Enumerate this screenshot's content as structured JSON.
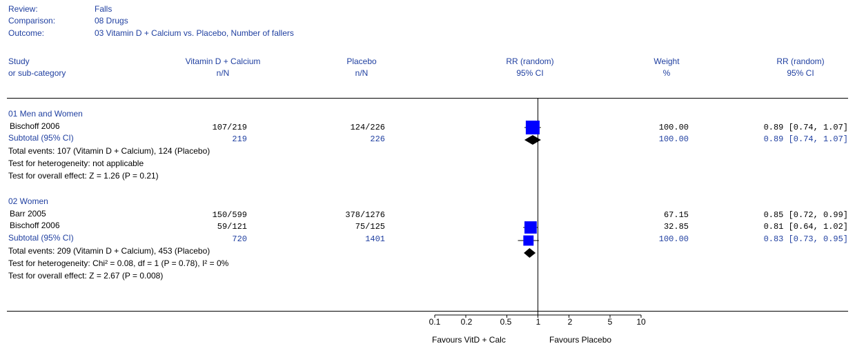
{
  "colors": {
    "text_blue": "#1f3fa0",
    "box_blue": "#0000ff",
    "text_black": "#000000"
  },
  "meta": {
    "review_label": "Review:",
    "review_value": "Falls",
    "comparison_label": "Comparison:",
    "comparison_value": "08 Drugs",
    "outcome_label": "Outcome:",
    "outcome_value": "03 Vitamin D + Calcium vs. Placebo, Number of fallers"
  },
  "headers": {
    "study_1": "Study",
    "study_2": "or sub-category",
    "treat_1": "Vitamin D + Calcium",
    "treat_2": "n/N",
    "ctrl_1": "Placebo",
    "ctrl_2": "n/N",
    "plot_1": "RR (random)",
    "plot_2": "95% CI",
    "weight_1": "Weight",
    "weight_2": "%",
    "rr_1": "RR (random)",
    "rr_2": "95% CI"
  },
  "groups": [
    {
      "title": "01 Men and Women",
      "studies": [
        {
          "name": "Bischoff 2006",
          "treat": "107/219",
          "ctrl": "124/226",
          "weight": "100.00",
          "rr": "0.89 [0.74, 1.07]"
        }
      ],
      "subtotal": {
        "label": "Subtotal (95% CI)",
        "treat": "219",
        "ctrl": "226",
        "weight": "100.00",
        "rr": "0.89 [0.74, 1.07]"
      },
      "notes": [
        "Total events: 107 (Vitamin D + Calcium), 124 (Placebo)",
        "Test for heterogeneity: not applicable",
        "Test for overall effect: Z = 1.26 (P = 0.21)"
      ]
    },
    {
      "title": "02 Women",
      "studies": [
        {
          "name": "Barr 2005",
          "treat": "150/599",
          "ctrl": "378/1276",
          "weight": "67.15",
          "rr": "0.85 [0.72, 0.99]"
        },
        {
          "name": "Bischoff 2006",
          "treat": "59/121",
          "ctrl": "75/125",
          "weight": "32.85",
          "rr": "0.81 [0.64, 1.02]"
        }
      ],
      "subtotal": {
        "label": "Subtotal (95% CI)",
        "treat": "720",
        "ctrl": "1401",
        "weight": "100.00",
        "rr": "0.83 [0.73, 0.95]"
      },
      "notes": [
        "Total events: 209 (Vitamin D + Calcium), 453 (Placebo)",
        "Test for heterogeneity: Chi² = 0.08, df = 1 (P = 0.78), I² = 0%",
        "Test for overall effect: Z = 2.67 (P = 0.008)"
      ]
    }
  ],
  "axis": {
    "ticks": [
      "0.1",
      "0.2",
      "0.5",
      "1",
      "2",
      "5",
      "10"
    ],
    "favours_left": "Favours VitD + Calc",
    "favours_right": "Favours Placebo"
  },
  "chart_data": {
    "type": "forest",
    "scale": "log",
    "xlim": [
      0.1,
      10
    ],
    "null_value": 1,
    "points": [
      {
        "group": "01 Men and Women",
        "study": "Bischoff 2006",
        "rr": 0.89,
        "lo": 0.74,
        "hi": 1.07,
        "weight": 100.0,
        "kind": "study"
      },
      {
        "group": "01 Men and Women",
        "study": "Subtotal (95% CI)",
        "rr": 0.89,
        "lo": 0.74,
        "hi": 1.07,
        "weight": 100.0,
        "kind": "subtotal"
      },
      {
        "group": "02 Women",
        "study": "Barr 2005",
        "rr": 0.85,
        "lo": 0.72,
        "hi": 0.99,
        "weight": 67.15,
        "kind": "study"
      },
      {
        "group": "02 Women",
        "study": "Bischoff 2006",
        "rr": 0.81,
        "lo": 0.64,
        "hi": 1.02,
        "weight": 32.85,
        "kind": "study"
      },
      {
        "group": "02 Women",
        "study": "Subtotal (95% CI)",
        "rr": 0.83,
        "lo": 0.73,
        "hi": 0.95,
        "weight": 100.0,
        "kind": "subtotal"
      }
    ]
  }
}
